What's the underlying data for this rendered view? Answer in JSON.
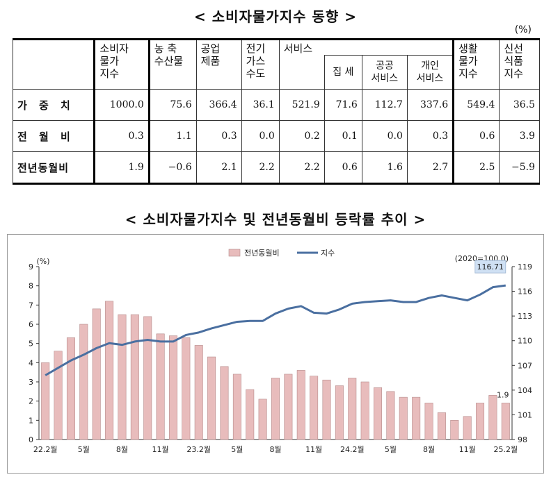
{
  "titles": {
    "table_title": "< 소비자물가지수 동향 >",
    "chart_title": "< 소비자물가지수 및 전년동월비 등락률 추이 >",
    "unit": "(%)"
  },
  "table": {
    "headers": {
      "total": "소비자\n물가\n지수",
      "agri": "농 축\n수산물",
      "industrial": "공업\n제품",
      "utilities": "전기\n가스\n수도",
      "services": "서비스",
      "rent": "집 세",
      "public": "공공\n서비스",
      "personal": "개인\n서비스",
      "living": "생활\n물가\n지수",
      "fresh": "신선\n식품\n지수"
    },
    "rows": [
      {
        "label": "가 중 치",
        "values": [
          "1000.0",
          "75.6",
          "366.4",
          "36.1",
          "521.9",
          "71.6",
          "112.7",
          "337.6",
          "549.4",
          "36.5"
        ]
      },
      {
        "label": "전 월 비",
        "values": [
          "0.3",
          "1.1",
          "0.3",
          "0.0",
          "0.2",
          "0.1",
          "0.0",
          "0.3",
          "0.6",
          "3.9"
        ]
      },
      {
        "label": "전년동월비",
        "values": [
          "1.9",
          "−0.6",
          "2.1",
          "2.2",
          "2.2",
          "0.6",
          "1.6",
          "2.7",
          "2.5",
          "−5.9"
        ]
      }
    ]
  },
  "chart_data": {
    "type": "bar+line",
    "title": "",
    "left_axis_label": "(%)",
    "right_axis_label": "(2020=100.0)",
    "legend": [
      "전년동월비",
      "지수"
    ],
    "left_ylim": [
      0,
      9
    ],
    "left_ticks": [
      "0",
      "1",
      "2",
      "3",
      "4",
      "5",
      "6",
      "7",
      "8",
      "9"
    ],
    "right_ylim": [
      98,
      119
    ],
    "right_ticks": [
      "98",
      "101",
      "104",
      "107",
      "110",
      "113",
      "116",
      "119"
    ],
    "x_tick_labels": [
      {
        "index": 0,
        "label": "22.2월"
      },
      {
        "index": 3,
        "label": "5월"
      },
      {
        "index": 6,
        "label": "8월"
      },
      {
        "index": 9,
        "label": "11월"
      },
      {
        "index": 12,
        "label": "23.2월"
      },
      {
        "index": 15,
        "label": "5월"
      },
      {
        "index": 18,
        "label": "8월"
      },
      {
        "index": 21,
        "label": "11월"
      },
      {
        "index": 24,
        "label": "24.2월"
      },
      {
        "index": 27,
        "label": "5월"
      },
      {
        "index": 30,
        "label": "8월"
      },
      {
        "index": 33,
        "label": "11월"
      },
      {
        "index": 36,
        "label": "25.2월"
      }
    ],
    "series": [
      {
        "name": "전년동월비",
        "kind": "bar",
        "color": "#e8bcbc",
        "values": [
          4.0,
          4.6,
          5.3,
          6.0,
          6.8,
          7.2,
          6.5,
          6.5,
          6.4,
          5.5,
          5.4,
          5.3,
          4.9,
          4.3,
          3.8,
          3.4,
          2.6,
          2.1,
          3.2,
          3.4,
          3.6,
          3.3,
          3.1,
          2.8,
          3.2,
          3.0,
          2.7,
          2.5,
          2.2,
          2.2,
          1.9,
          1.4,
          1.0,
          1.2,
          1.9,
          2.3,
          1.9
        ]
      },
      {
        "name": "지수",
        "kind": "line",
        "color": "#4a6fa0",
        "values": [
          105.8,
          106.7,
          107.6,
          108.3,
          109.1,
          109.7,
          109.5,
          109.9,
          110.1,
          109.9,
          109.9,
          110.7,
          111.0,
          111.5,
          111.9,
          112.3,
          112.4,
          112.4,
          113.3,
          113.9,
          114.2,
          113.4,
          113.3,
          113.8,
          114.5,
          114.7,
          114.8,
          114.9,
          114.7,
          114.7,
          115.2,
          115.5,
          115.2,
          114.9,
          115.6,
          116.5,
          116.71
        ]
      }
    ],
    "annotations": {
      "last_bar_label": "1.9",
      "last_index_label": "116.71"
    },
    "grid": false,
    "legend_position": "top-center"
  }
}
